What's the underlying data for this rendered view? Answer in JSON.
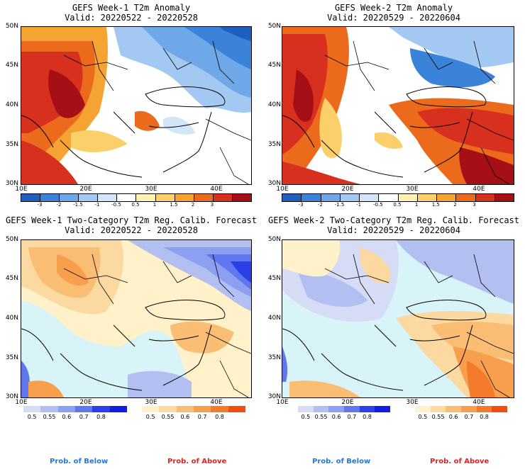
{
  "panels": [
    {
      "title": "GEFS Week-1 T2m Anomaly",
      "valid": "Valid: 20220522 - 20220528"
    },
    {
      "title": "GEFS Week-2 T2m Anomaly",
      "valid": "Valid: 20220529 - 20220604"
    },
    {
      "title": "GEFS Week-1 Two-Category T2m Reg. Calib. Forecast",
      "valid": "Valid: 20220522 - 20220528"
    },
    {
      "title": "GEFS Week-2 Two-Category T2m Reg. Calib. Forecast",
      "valid": "Valid: 20220529 - 20220604"
    }
  ],
  "axes": {
    "lat_labels": [
      "50N",
      "45N",
      "40N",
      "35N",
      "30N"
    ],
    "lon_labels": [
      "10E",
      "20E",
      "30E",
      "40E"
    ]
  },
  "anomaly_colorbar": {
    "labels": [
      "-3",
      "-2",
      "-1.5",
      "-1",
      "-0.5",
      "0.5",
      "1",
      "1.5",
      "2",
      "3"
    ],
    "colors": [
      "#1e5fbf",
      "#3b82d9",
      "#6ea8e8",
      "#a3c9f2",
      "#d3e6f8",
      "#ffffff",
      "#fff0b3",
      "#fbd06a",
      "#f5a433",
      "#ec6a1c",
      "#d7301f",
      "#a50f15"
    ]
  },
  "prob_colorbar": {
    "below_labels": [
      "0.5",
      "0.55",
      "0.6",
      "0.7",
      "0.8"
    ],
    "above_labels": [
      "0.5",
      "0.55",
      "0.6",
      "0.7",
      "0.8"
    ],
    "below_colors": [
      "#d6dcf5",
      "#b3bff0",
      "#8c9ff0",
      "#5f78ee",
      "#2a3fe8",
      "#0f1ee0"
    ],
    "above_colors": [
      "#fff1c9",
      "#fcd9a0",
      "#f9bd74",
      "#f79f4d",
      "#f47a2c",
      "#f24e12"
    ]
  },
  "legend": {
    "below": "Prob. of Below",
    "above": "Prob. of Above",
    "below_color": "#1f78e6",
    "above_color": "#e61f1f"
  },
  "map_colors": {
    "sea_neutral": "#ffffff",
    "prob_sea": "#d9f4f8"
  }
}
